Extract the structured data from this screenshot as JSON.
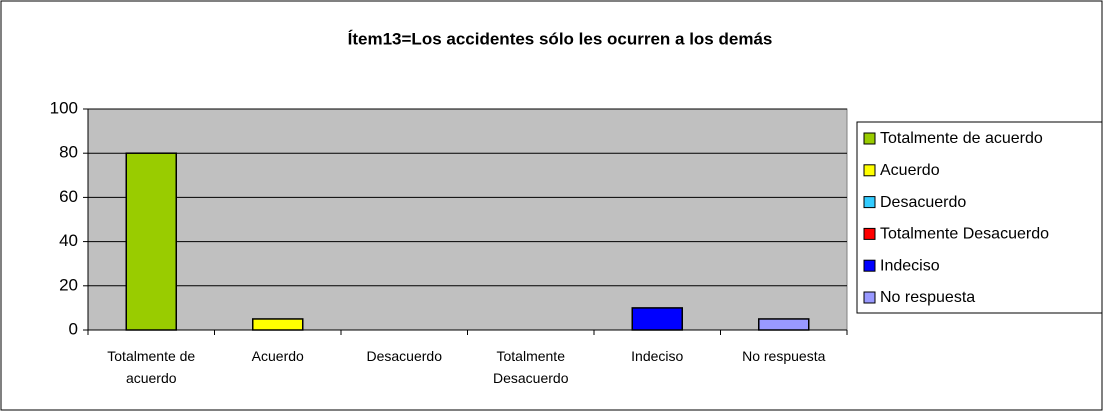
{
  "chart_data": {
    "type": "bar",
    "title": "Ítem13=Los accidentes sólo les ocurren a los demás",
    "categories": [
      "Totalmente de acuerdo",
      "Acuerdo",
      "Desacuerdo",
      "Totalmente Desacuerdo",
      "Indeciso",
      "No respuesta"
    ],
    "values": [
      80,
      5,
      0,
      0,
      10,
      5
    ],
    "colors": [
      "#99cc00",
      "#ffff00",
      "#33ccff",
      "#ff0000",
      "#0000ff",
      "#9999ff"
    ],
    "ylim": [
      0,
      100
    ],
    "yticks": [
      0,
      20,
      40,
      60,
      80,
      100
    ],
    "grid": true,
    "legend": "right"
  }
}
